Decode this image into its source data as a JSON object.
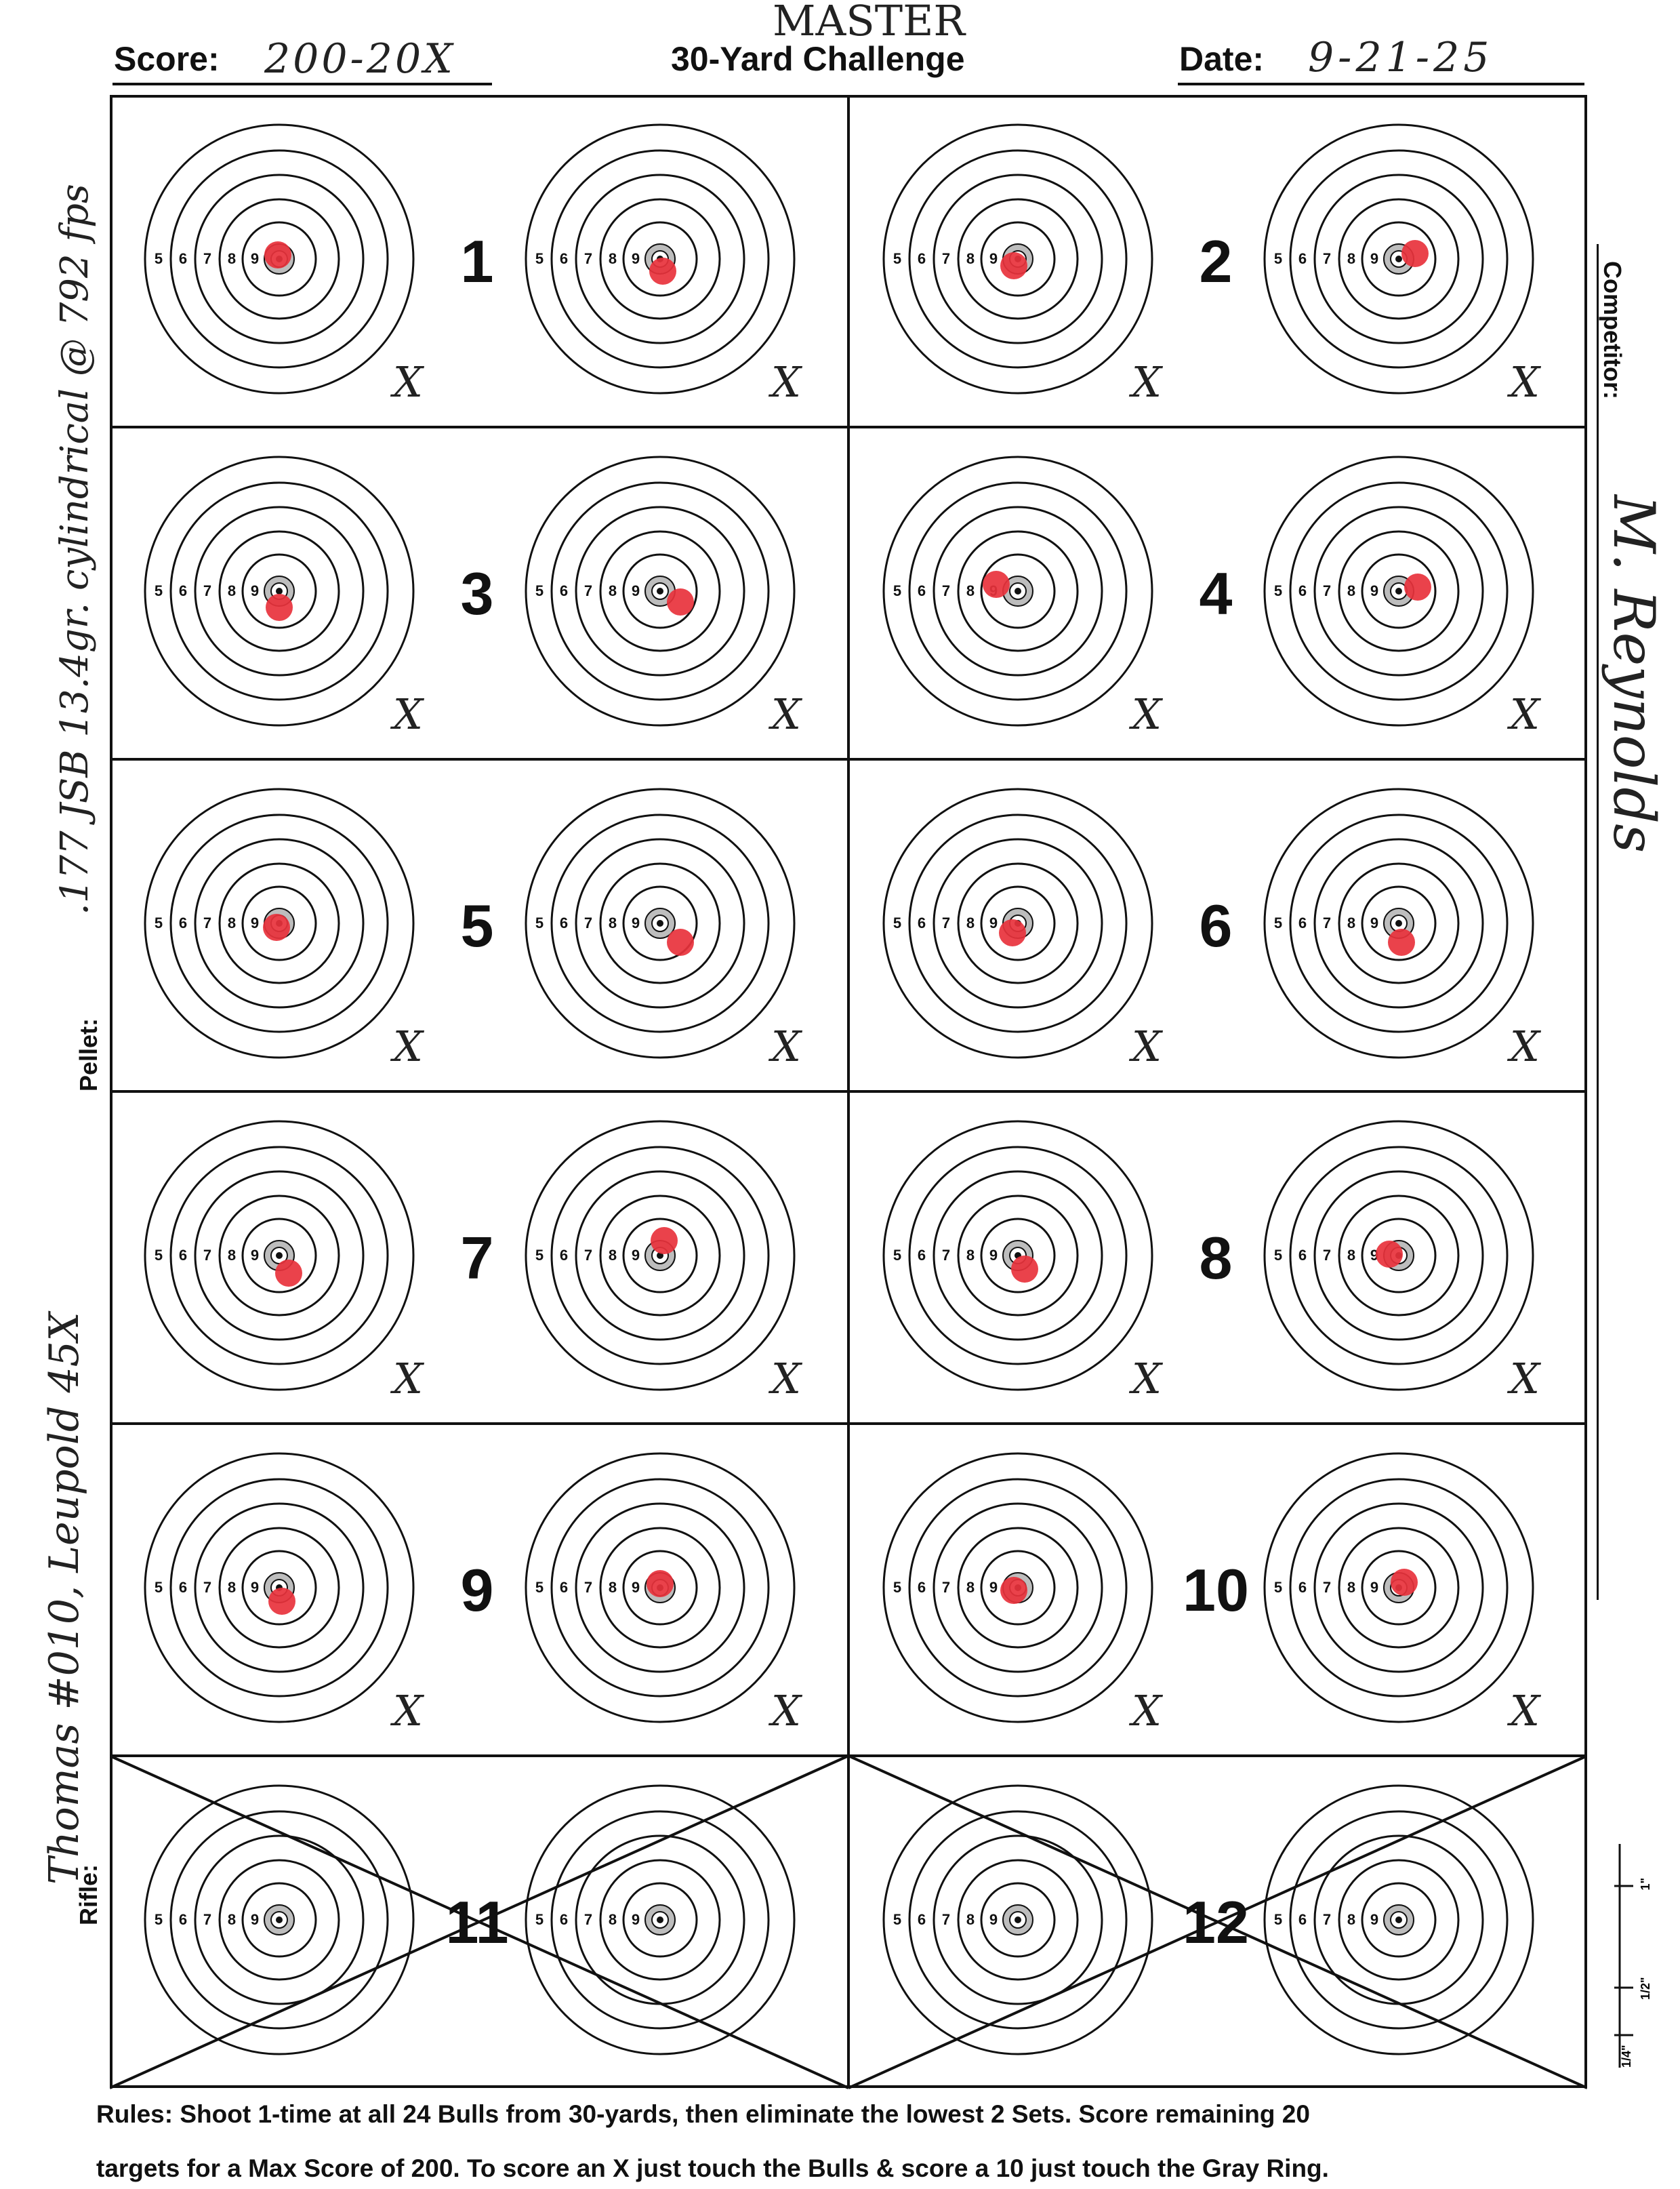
{
  "header": {
    "score_label": "Score:",
    "score_value": "200-20X",
    "title": "30-Yard Challenge",
    "title_annotation": "MASTER",
    "date_label": "Date:",
    "date_value": "9-21-25"
  },
  "side_labels": {
    "pellet_label": "Pellet:",
    "pellet_value": ".177 JSB 13.4gr. cylindrical @ 792 fps",
    "rifle_label": "Rifle:",
    "rifle_value": "Thomas #010, Leupold 45X",
    "competitor_label": "Competitor:",
    "competitor_value": "M. Reynolds"
  },
  "ring_labels": [
    "5",
    "6",
    "7",
    "8",
    "9"
  ],
  "targets": [
    {
      "number": "1",
      "eliminated": false
    },
    {
      "number": "2",
      "eliminated": false
    },
    {
      "number": "3",
      "eliminated": false
    },
    {
      "number": "4",
      "eliminated": false
    },
    {
      "number": "5",
      "eliminated": false
    },
    {
      "number": "6",
      "eliminated": false
    },
    {
      "number": "7",
      "eliminated": false
    },
    {
      "number": "8",
      "eliminated": false
    },
    {
      "number": "9",
      "eliminated": false
    },
    {
      "number": "10",
      "eliminated": false
    },
    {
      "number": "11",
      "eliminated": true
    },
    {
      "number": "12",
      "eliminated": true
    }
  ],
  "x_mark": "X",
  "scale_marks": [
    "1/4\"",
    "1/2\"",
    "1\""
  ],
  "rules": {
    "line1": "Rules: Shoot 1-time at all 24 Bulls from 30-yards, then eliminate the lowest 2 Sets. Score remaining 20",
    "line2": "targets for a Max Score of 200. To score an X just touch the Bulls & score a 10 just touch the Gray Ring."
  },
  "colors": {
    "ink": "#111111",
    "shot": "#e8323c",
    "gray_ring": "#bdbdbd",
    "handwriting": "#222222"
  }
}
